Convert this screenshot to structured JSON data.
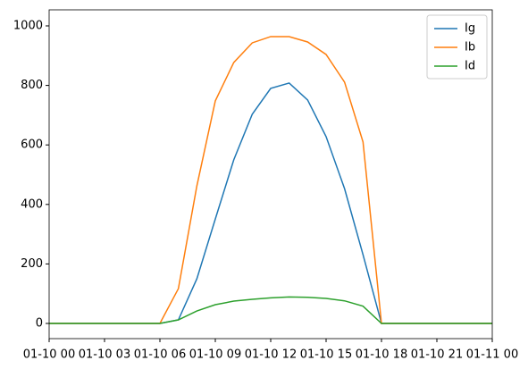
{
  "chart_data": {
    "type": "line",
    "x": [
      0,
      1,
      2,
      3,
      4,
      5,
      6,
      7,
      8,
      9,
      10,
      11,
      12,
      13,
      14,
      15,
      16,
      17,
      18,
      19,
      20,
      21,
      22,
      23,
      24
    ],
    "series": [
      {
        "name": "Ig",
        "color": "#1f77b4",
        "values": [
          0,
          0,
          0,
          0,
          0,
          0,
          0,
          12,
          150,
          351,
          550,
          703,
          790,
          808,
          751,
          628,
          453,
          231,
          0,
          0,
          0,
          0,
          0,
          0,
          0
        ]
      },
      {
        "name": "Ib",
        "color": "#ff7f0e",
        "values": [
          0,
          0,
          0,
          0,
          0,
          0,
          0,
          117,
          462,
          748,
          877,
          943,
          964,
          964,
          946,
          904,
          811,
          610,
          0,
          0,
          0,
          0,
          0,
          0,
          0
        ]
      },
      {
        "name": "Id",
        "color": "#2ca02c",
        "values": [
          0,
          0,
          0,
          0,
          0,
          0,
          0,
          12,
          42,
          63,
          75,
          81,
          86,
          89,
          88,
          84,
          76,
          58,
          0,
          0,
          0,
          0,
          0,
          0,
          0
        ]
      }
    ],
    "xlim": [
      0,
      24
    ],
    "xticks": [
      {
        "value": 0,
        "label": "01-10 00"
      },
      {
        "value": 3,
        "label": "01-10 03"
      },
      {
        "value": 6,
        "label": "01-10 06"
      },
      {
        "value": 9,
        "label": "01-10 09"
      },
      {
        "value": 12,
        "label": "01-10 12"
      },
      {
        "value": 15,
        "label": "01-10 15"
      },
      {
        "value": 18,
        "label": "01-10 18"
      },
      {
        "value": 21,
        "label": "01-10 21"
      },
      {
        "value": 24,
        "label": "01-11 00"
      }
    ],
    "ylim": [
      -51,
      1054
    ],
    "yticks": [
      0,
      200,
      400,
      600,
      800,
      1000
    ],
    "legend": "upper right"
  }
}
